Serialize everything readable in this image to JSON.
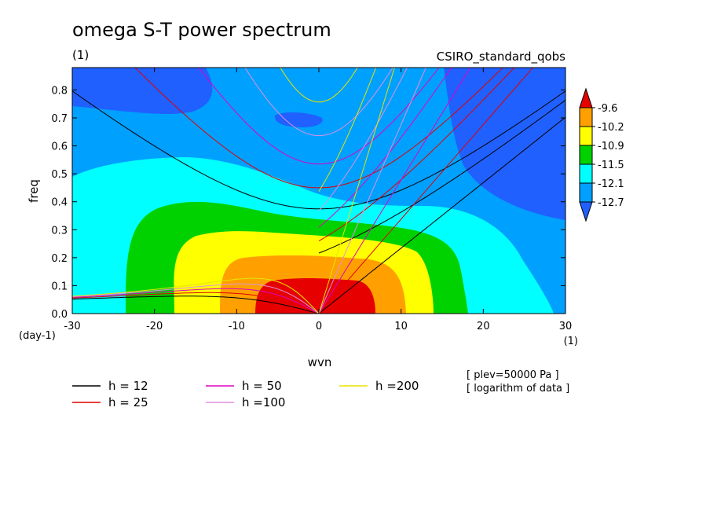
{
  "chart_data": {
    "type": "contour",
    "title": "omega S-T power spectrum",
    "subtitle_left": "(1)",
    "subtitle_right": "CSIRO_standard_qobs",
    "xlabel": "wvn",
    "ylabel": "freq",
    "x_unit": "(1)",
    "y_unit": "(day-1)",
    "xlim": [
      -30,
      30
    ],
    "ylim": [
      0,
      0.88
    ],
    "x_ticks": [
      -30,
      -20,
      -10,
      0,
      10,
      20,
      30
    ],
    "x_tick_labels": [
      "-30",
      "-20",
      "-10",
      "0",
      "10",
      "20",
      "30"
    ],
    "y_ticks": [
      0,
      0.1,
      0.2,
      0.3,
      0.4,
      0.5,
      0.6,
      0.7,
      0.8
    ],
    "y_tick_labels": [
      "0.0",
      "0.1",
      "0.2",
      "0.3",
      "0.4",
      "0.5",
      "0.6",
      "0.7",
      "0.8"
    ],
    "colorbar": {
      "levels": [
        "-9.6",
        "-10.2",
        "-10.9",
        "-11.5",
        "-12.1",
        "-12.7"
      ],
      "colors": [
        "#e60000",
        "#ffa000",
        "#ffff00",
        "#00d200",
        "#00ffff",
        "#00a0ff",
        "#2060ff"
      ]
    },
    "dispersion_curves": [
      {
        "label": "h = 12",
        "h": 12,
        "color": "#000000"
      },
      {
        "label": "h = 25",
        "h": 25,
        "color": "#e00000"
      },
      {
        "label": "h = 50",
        "h": 50,
        "color": "#e000c0"
      },
      {
        "label": "h =100",
        "h": 100,
        "color": "#e090e0"
      },
      {
        "label": "h =200",
        "h": 200,
        "color": "#e6e600"
      }
    ],
    "notes": [
      "[ plev=50000 Pa ]",
      "[ logarithm of data ]"
    ]
  }
}
